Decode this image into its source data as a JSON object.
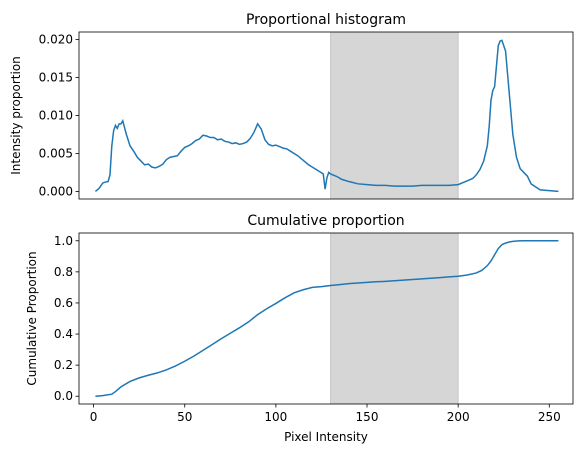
{
  "chart_data": [
    {
      "type": "line",
      "title": "Proportional histogram",
      "xlabel": "",
      "ylabel": "Intensity proportion",
      "xlim": [
        -8,
        263
      ],
      "ylim": [
        -0.001,
        0.021
      ],
      "xticks_visible": false,
      "yticks": [
        0.0,
        0.005,
        0.01,
        0.015,
        0.02
      ],
      "ytick_labels": [
        "0.000",
        "0.005",
        "0.010",
        "0.015",
        "0.020"
      ],
      "shaded_region": {
        "x0": 130,
        "x1": 200,
        "color": "#d6d6d6"
      },
      "line_color": "#1f77b4",
      "grid": false,
      "x": [
        1,
        3,
        5,
        6,
        8,
        9,
        10,
        11,
        12,
        13,
        14,
        15,
        16,
        18,
        20,
        22,
        24,
        26,
        28,
        30,
        32,
        34,
        36,
        38,
        40,
        42,
        44,
        46,
        48,
        50,
        52,
        54,
        56,
        58,
        60,
        62,
        64,
        66,
        68,
        70,
        72,
        74,
        76,
        78,
        80,
        82,
        84,
        86,
        88,
        90,
        92,
        94,
        96,
        98,
        100,
        102,
        104,
        106,
        108,
        110,
        112,
        114,
        116,
        118,
        120,
        122,
        124,
        126,
        127,
        128,
        129,
        130,
        132,
        134,
        136,
        140,
        145,
        150,
        155,
        160,
        165,
        170,
        175,
        180,
        185,
        190,
        195,
        200,
        205,
        208,
        210,
        212,
        214,
        216,
        217,
        218,
        219,
        220,
        221,
        222,
        223,
        224,
        226,
        228,
        230,
        232,
        234,
        236,
        238,
        240,
        245,
        250,
        255
      ],
      "y": [
        0.0,
        0.0004,
        0.0011,
        0.0012,
        0.0013,
        0.0022,
        0.006,
        0.008,
        0.0087,
        0.0083,
        0.0089,
        0.0089,
        0.0093,
        0.0075,
        0.006,
        0.0053,
        0.0045,
        0.004,
        0.0035,
        0.0036,
        0.0032,
        0.0031,
        0.0033,
        0.0036,
        0.0042,
        0.0045,
        0.0046,
        0.0047,
        0.0053,
        0.0058,
        0.006,
        0.0063,
        0.0067,
        0.0069,
        0.0074,
        0.0073,
        0.0071,
        0.0071,
        0.0068,
        0.0069,
        0.0066,
        0.0065,
        0.0063,
        0.0064,
        0.0062,
        0.0063,
        0.0065,
        0.007,
        0.0078,
        0.0089,
        0.0082,
        0.0068,
        0.0062,
        0.006,
        0.0061,
        0.0059,
        0.0057,
        0.0056,
        0.0053,
        0.005,
        0.0047,
        0.0043,
        0.0039,
        0.0035,
        0.0032,
        0.0029,
        0.0026,
        0.0023,
        0.0003,
        0.0018,
        0.0025,
        0.0023,
        0.0021,
        0.0019,
        0.0016,
        0.0013,
        0.001,
        0.0009,
        0.0008,
        0.0008,
        0.0007,
        0.0007,
        0.0007,
        0.0008,
        0.0008,
        0.0008,
        0.0008,
        0.0009,
        0.0014,
        0.0017,
        0.0022,
        0.0029,
        0.004,
        0.006,
        0.0085,
        0.012,
        0.0133,
        0.0138,
        0.0165,
        0.0192,
        0.0198,
        0.0199,
        0.0185,
        0.013,
        0.0075,
        0.0045,
        0.003,
        0.0025,
        0.002,
        0.001,
        0.0002,
        0.0001,
        0.0
      ],
      "xtick_positions": [
        0,
        50,
        100,
        150,
        200,
        250
      ]
    },
    {
      "type": "line",
      "title": "Cumulative proportion",
      "xlabel": "Pixel Intensity",
      "ylabel": "Cumulative Proportion",
      "xlim": [
        -8,
        263
      ],
      "ylim": [
        -0.05,
        1.05
      ],
      "xticks": [
        0,
        50,
        100,
        150,
        200,
        250
      ],
      "xtick_labels": [
        "0",
        "50",
        "100",
        "150",
        "200",
        "250"
      ],
      "yticks": [
        0.0,
        0.2,
        0.4,
        0.6,
        0.8,
        1.0
      ],
      "ytick_labels": [
        "0.0",
        "0.2",
        "0.4",
        "0.6",
        "0.8",
        "1.0"
      ],
      "shaded_region": {
        "x0": 130,
        "x1": 200,
        "color": "#d6d6d6"
      },
      "line_color": "#1f77b4",
      "grid": false,
      "x": [
        1,
        5,
        10,
        12,
        15,
        20,
        25,
        30,
        35,
        40,
        45,
        50,
        55,
        60,
        65,
        70,
        75,
        80,
        85,
        90,
        95,
        100,
        105,
        110,
        115,
        120,
        125,
        130,
        135,
        140,
        145,
        150,
        155,
        160,
        165,
        170,
        175,
        180,
        185,
        190,
        195,
        200,
        205,
        210,
        213,
        216,
        218,
        220,
        222,
        224,
        226,
        228,
        230,
        233,
        236,
        240,
        245,
        250,
        255
      ],
      "y": [
        0.0,
        0.004,
        0.013,
        0.03,
        0.06,
        0.095,
        0.118,
        0.135,
        0.15,
        0.17,
        0.195,
        0.225,
        0.258,
        0.295,
        0.332,
        0.37,
        0.405,
        0.44,
        0.478,
        0.525,
        0.563,
        0.597,
        0.633,
        0.665,
        0.685,
        0.7,
        0.705,
        0.712,
        0.718,
        0.724,
        0.728,
        0.732,
        0.736,
        0.739,
        0.743,
        0.747,
        0.751,
        0.755,
        0.759,
        0.763,
        0.768,
        0.772,
        0.78,
        0.793,
        0.81,
        0.84,
        0.87,
        0.91,
        0.95,
        0.975,
        0.985,
        0.992,
        0.996,
        0.999,
        1.0,
        1.0,
        1.0,
        1.0,
        1.0
      ]
    }
  ]
}
